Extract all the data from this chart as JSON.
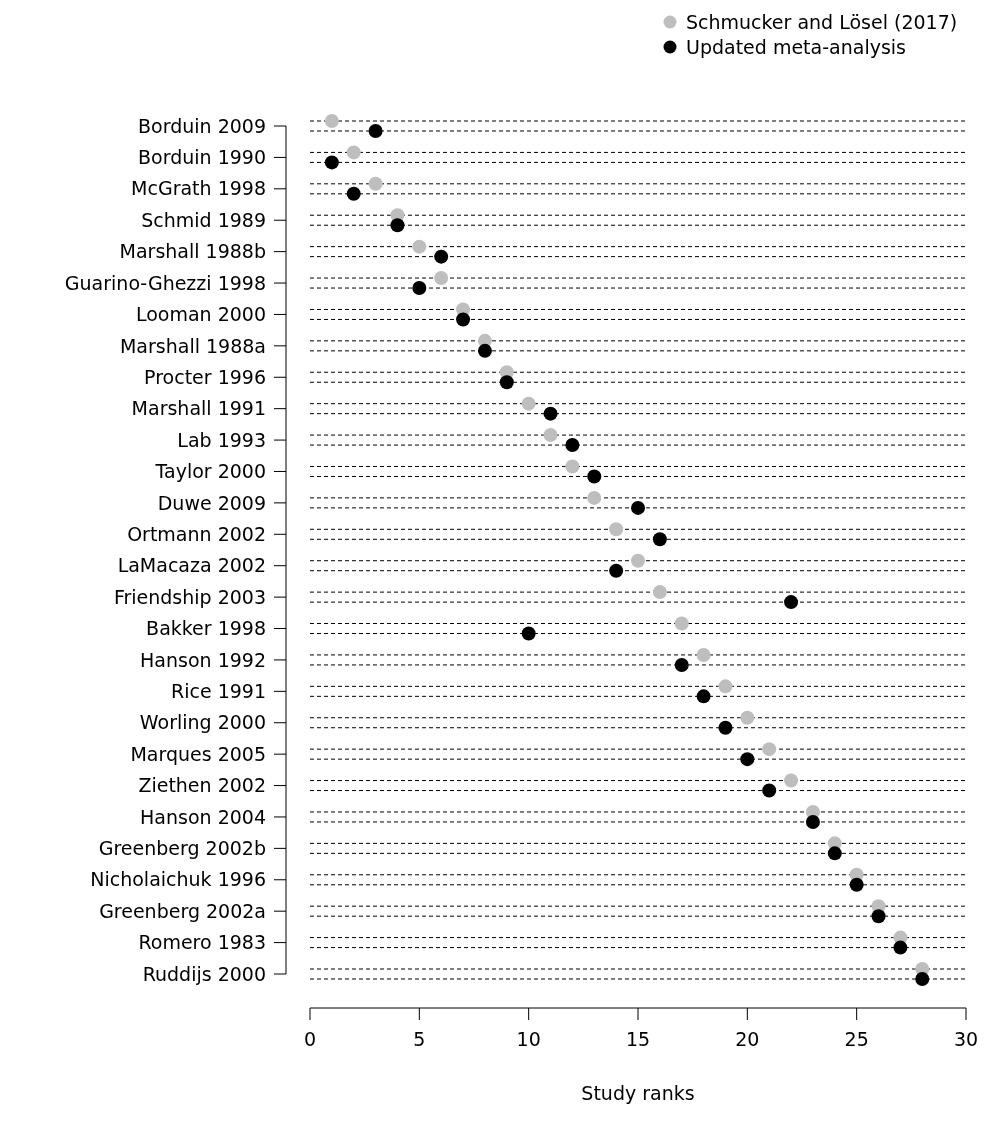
{
  "chart_data": {
    "type": "scatter",
    "orientation": "horizontal",
    "xlabel": "Study ranks",
    "categories": [
      "Borduin 2009",
      "Borduin 1990",
      "McGrath 1998",
      "Schmid 1989",
      "Marshall 1988b",
      "Guarino-Ghezzi 1998",
      "Looman 2000",
      "Marshall 1988a",
      "Procter 1996",
      "Marshall 1991",
      "Lab 1993",
      "Taylor 2000",
      "Duwe 2009",
      "Ortmann 2002",
      "LaMacaza 2002",
      "Friendship 2003",
      "Bakker 1998",
      "Hanson 1992",
      "Rice 1991",
      "Worling 2000",
      "Marques 2005",
      "Ziethen 2002",
      "Hanson 2004",
      "Greenberg 2002b",
      "Nicholaichuk 1996",
      "Greenberg 2002a",
      "Romero 1983",
      "Ruddijs 2000"
    ],
    "series": [
      {
        "name": "Schmucker and Lösel (2017)",
        "color": "#bebebe",
        "values": [
          1,
          2,
          3,
          4,
          5,
          6,
          7,
          8,
          9,
          10,
          11,
          12,
          13,
          14,
          15,
          16,
          17,
          18,
          19,
          20,
          21,
          22,
          23,
          24,
          25,
          26,
          27,
          28
        ]
      },
      {
        "name": "Updated meta-analysis",
        "color": "#000000",
        "values": [
          3,
          1,
          2,
          4,
          6,
          5,
          7,
          8,
          9,
          11,
          12,
          13,
          15,
          16,
          14,
          22,
          10,
          17,
          18,
          19,
          20,
          21,
          23,
          24,
          25,
          26,
          27,
          28
        ]
      }
    ],
    "xlim": [
      0,
      30
    ],
    "xticks": [
      0,
      5,
      10,
      15,
      20,
      25,
      30
    ],
    "grid": "y",
    "line_style": "dashed",
    "marker": "circle",
    "legend": "top right"
  }
}
